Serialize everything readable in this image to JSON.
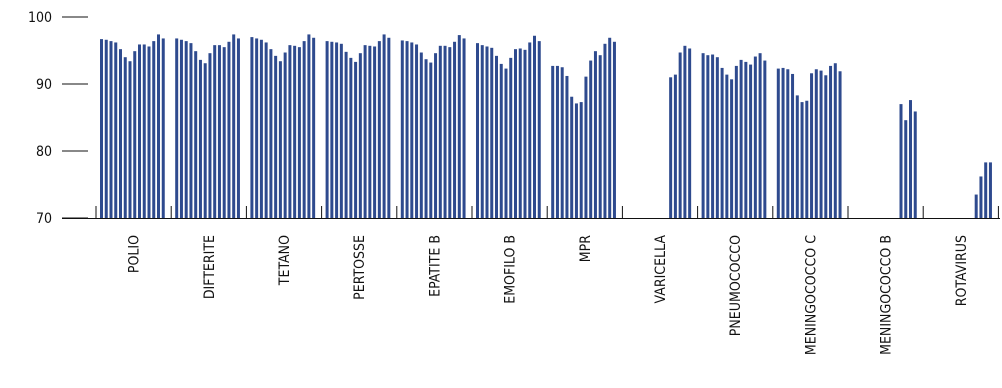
{
  "chart_data": {
    "type": "bar",
    "categories": [
      "POLIO",
      "DIFTERITE",
      "TETANO",
      "PERTOSSE",
      "EPATITE B",
      "EMOFILO B",
      "MPR",
      "VARICELLA",
      "PNEUMOCOCCO",
      "MENINGOCOCCO C",
      "MENINGOCOCCO B",
      "ROTAVIRUS"
    ],
    "values": [
      [
        96.7,
        96.6,
        96.4,
        96.2,
        95.2,
        94.0,
        93.4,
        94.9,
        95.9,
        95.9,
        95.6,
        96.4,
        97.4,
        96.8
      ],
      [
        96.8,
        96.6,
        96.4,
        96.1,
        94.9,
        93.6,
        93.1,
        94.6,
        95.8,
        95.8,
        95.5,
        96.3,
        97.4,
        96.8
      ],
      [
        97.0,
        96.8,
        96.6,
        96.2,
        95.2,
        94.2,
        93.4,
        94.7,
        95.8,
        95.7,
        95.5,
        96.4,
        97.4,
        96.9
      ],
      [
        96.4,
        96.3,
        96.2,
        96.0,
        94.8,
        93.9,
        93.3,
        94.6,
        95.8,
        95.7,
        95.6,
        96.4,
        97.4,
        96.9
      ],
      [
        96.5,
        96.4,
        96.2,
        95.9,
        94.7,
        93.7,
        93.2,
        94.6,
        95.7,
        95.7,
        95.5,
        96.3,
        97.3,
        96.8
      ],
      [
        96.1,
        95.8,
        95.6,
        95.4,
        94.2,
        93.0,
        92.3,
        93.9,
        95.2,
        95.3,
        95.1,
        96.2,
        97.2,
        96.4
      ],
      [
        92.7,
        92.7,
        92.5,
        91.2,
        88.1,
        87.1,
        87.3,
        91.1,
        93.5,
        94.9,
        94.3,
        96.0,
        96.9,
        96.3
      ],
      [
        null,
        null,
        null,
        null,
        null,
        null,
        null,
        null,
        null,
        91.0,
        91.4,
        94.7,
        95.7,
        95.3
      ],
      [
        94.6,
        94.3,
        94.4,
        94.0,
        92.4,
        91.4,
        90.7,
        92.7,
        93.6,
        93.3,
        92.9,
        94.1,
        94.6,
        93.5
      ],
      [
        92.3,
        92.4,
        92.2,
        91.5,
        88.3,
        87.3,
        87.5,
        91.6,
        92.2,
        92.0,
        91.3,
        92.7,
        93.1,
        91.9
      ],
      [
        null,
        null,
        null,
        null,
        null,
        null,
        null,
        null,
        null,
        null,
        87.0,
        84.6,
        87.6,
        85.9
      ],
      [
        null,
        null,
        null,
        null,
        null,
        null,
        null,
        null,
        null,
        null,
        73.5,
        76.2,
        78.3,
        78.3
      ]
    ],
    "color": "#2e4a8e",
    "ylim": [
      70,
      100
    ],
    "yticks": [
      70,
      80,
      90,
      100
    ]
  }
}
